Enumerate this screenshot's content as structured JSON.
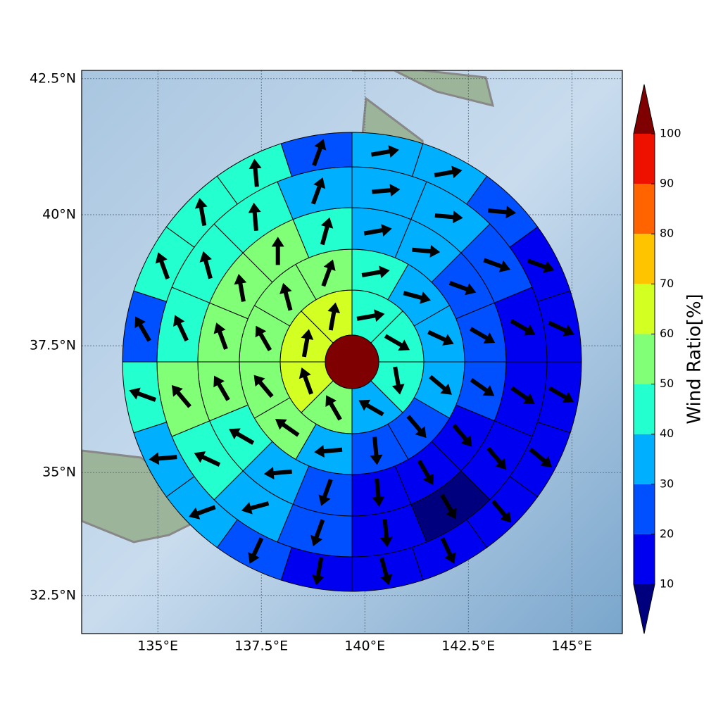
{
  "chart_data": {
    "type": "polar-grid-map",
    "xlim": [
      133.16,
      146.22
    ],
    "ylim": [
      31.71,
      42.65
    ],
    "xticks": [
      {
        "value": 135,
        "label": "135°E"
      },
      {
        "value": 137.5,
        "label": "137.5°E"
      },
      {
        "value": 140,
        "label": "140°E"
      },
      {
        "value": 142.5,
        "label": "142.5°E"
      },
      {
        "value": 145,
        "label": "145°E"
      }
    ],
    "yticks": [
      {
        "value": 32.5,
        "label": "32.5°N"
      },
      {
        "value": 35,
        "label": "35°N"
      },
      {
        "value": 37.5,
        "label": "37.5°N"
      },
      {
        "value": 40,
        "label": "40°N"
      },
      {
        "value": 42.5,
        "label": "42.5°N"
      }
    ],
    "grid": true,
    "center_value": 100,
    "rings": [
      {
        "values": [
          45,
          45,
          45,
          35,
          55,
          65,
          65,
          65
        ],
        "directions": [
          80,
          120,
          170,
          300,
          330,
          340,
          10,
          10
        ]
      },
      {
        "values": [
          45,
          35,
          35,
          35,
          25,
          25,
          35,
          55,
          55,
          55,
          55,
          55
        ],
        "directions": [
          80,
          105,
          115,
          130,
          140,
          175,
          265,
          305,
          320,
          330,
          345,
          20
        ]
      },
      {
        "values": [
          35,
          35,
          25,
          25,
          25,
          15,
          15,
          15,
          25,
          35,
          45,
          55,
          55,
          55,
          55,
          45
        ],
        "directions": [
          80,
          95,
          110,
          120,
          125,
          140,
          150,
          175,
          200,
          265,
          300,
          330,
          340,
          350,
          0,
          15
        ]
      },
      {
        "values": [
          35,
          35,
          25,
          15,
          15,
          15,
          5,
          15,
          25,
          35,
          45,
          55,
          45,
          45,
          45,
          35
        ],
        "directions": [
          85,
          95,
          110,
          120,
          125,
          140,
          150,
          175,
          200,
          255,
          295,
          320,
          335,
          345,
          355,
          20
        ]
      },
      {
        "values": [
          35,
          35,
          25,
          15,
          15,
          15,
          15,
          15,
          15,
          15,
          15,
          25,
          35,
          35,
          45,
          25,
          45,
          45,
          45,
          25
        ],
        "directions": [
          80,
          80,
          95,
          110,
          115,
          120,
          130,
          140,
          155,
          165,
          190,
          205,
          250,
          265,
          290,
          330,
          340,
          350,
          355,
          20
        ]
      }
    ],
    "colorbar": {
      "label": "Wind Ratio[%]",
      "levels": [
        10,
        20,
        30,
        40,
        50,
        60,
        70,
        80,
        90,
        100
      ],
      "colors": [
        "#00007f",
        "#0000f0",
        "#0050ff",
        "#00b0ff",
        "#24ffd0",
        "#80ff77",
        "#d4ff22",
        "#ffc400",
        "#ff6400",
        "#ee1100",
        "#7f0000"
      ]
    }
  }
}
